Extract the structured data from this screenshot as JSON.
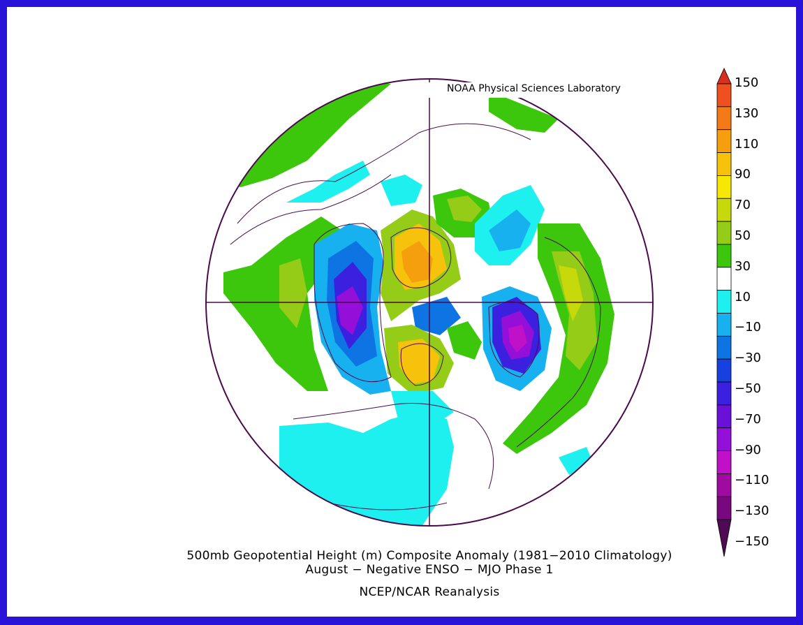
{
  "credit": "NOAA Physical Sciences Laboratory",
  "title": "500mb Geopotential Height (m) Composite Anomaly (1981−2010 Climatology)",
  "subtitle": "August − Negative ENSO − MJO Phase 1",
  "source": "NCEP/NCAR Reanalysis",
  "colorbar": {
    "labels": [
      "150",
      "130",
      "110",
      "90",
      "70",
      "50",
      "30",
      "10",
      "−10",
      "−30",
      "−50",
      "−70",
      "−90",
      "−110",
      "−130",
      "−150"
    ],
    "colors": [
      "#d7301f",
      "#f05020",
      "#f47a17",
      "#f59f0f",
      "#f6c20b",
      "#f7e705",
      "#c7d90a",
      "#94cc17",
      "#3cc70d",
      "#ffffff",
      "#1ef0f0",
      "#17b1f0",
      "#0f74e3",
      "#1740e0",
      "#3c20e0",
      "#6a10d8",
      "#9410d8",
      "#c010c8",
      "#a00aa0",
      "#78087d",
      "#500a55"
    ]
  }
}
